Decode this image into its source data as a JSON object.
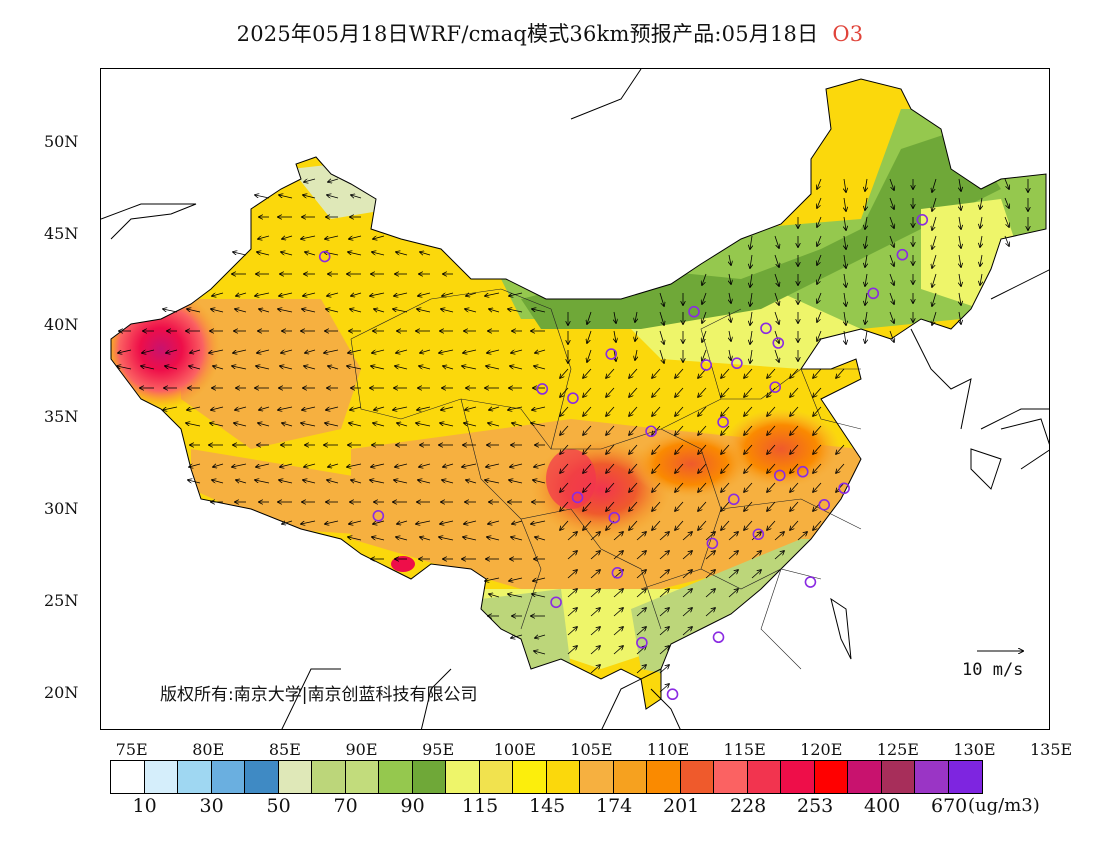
{
  "title": {
    "main": "2025年05月18日WRF/cmaq模式36km预报产品:05月18日",
    "pollutant": "O3",
    "pollutant_color": "#e0443a"
  },
  "map": {
    "lon_labels": [
      "75E",
      "80E",
      "85E",
      "90E",
      "95E",
      "100E",
      "105E",
      "110E",
      "115E",
      "120E",
      "125E",
      "130E",
      "135E"
    ],
    "lat_labels": [
      "50N",
      "45N",
      "40N",
      "35N",
      "30N",
      "25N",
      "20N"
    ],
    "lon_range": [
      73,
      135
    ],
    "lat_range": [
      18,
      54
    ],
    "copyright": "版权所有:南京大学|南京创蓝科技有限公司",
    "wind_ref_label": "10 m/s",
    "city_marker_color": "#8a2be2",
    "cities": [
      {
        "lon": 87.6,
        "lat": 43.8
      },
      {
        "lon": 91.1,
        "lat": 29.7
      },
      {
        "lon": 101.8,
        "lat": 36.6
      },
      {
        "lon": 103.8,
        "lat": 36.1
      },
      {
        "lon": 106.3,
        "lat": 38.5
      },
      {
        "lon": 104.1,
        "lat": 30.7
      },
      {
        "lon": 106.5,
        "lat": 29.6
      },
      {
        "lon": 106.7,
        "lat": 26.6
      },
      {
        "lon": 102.7,
        "lat": 25.0
      },
      {
        "lon": 108.3,
        "lat": 22.8
      },
      {
        "lon": 110.3,
        "lat": 20.0
      },
      {
        "lon": 113.3,
        "lat": 23.1
      },
      {
        "lon": 108.9,
        "lat": 34.3
      },
      {
        "lon": 111.7,
        "lat": 40.8
      },
      {
        "lon": 112.5,
        "lat": 37.9
      },
      {
        "lon": 114.5,
        "lat": 38.0
      },
      {
        "lon": 116.4,
        "lat": 39.9
      },
      {
        "lon": 117.2,
        "lat": 39.1
      },
      {
        "lon": 117.0,
        "lat": 36.7
      },
      {
        "lon": 113.6,
        "lat": 34.8
      },
      {
        "lon": 114.3,
        "lat": 30.6
      },
      {
        "lon": 112.9,
        "lat": 28.2
      },
      {
        "lon": 115.9,
        "lat": 28.7
      },
      {
        "lon": 117.3,
        "lat": 31.9
      },
      {
        "lon": 118.8,
        "lat": 32.1
      },
      {
        "lon": 120.2,
        "lat": 30.3
      },
      {
        "lon": 121.5,
        "lat": 31.2
      },
      {
        "lon": 119.3,
        "lat": 26.1
      },
      {
        "lon": 123.4,
        "lat": 41.8
      },
      {
        "lon": 125.3,
        "lat": 43.9
      },
      {
        "lon": 126.6,
        "lat": 45.8
      }
    ]
  },
  "legend": {
    "unit": "(ug/m3)",
    "labels": [
      "10",
      "30",
      "50",
      "70",
      "90",
      "115",
      "145",
      "174",
      "201",
      "228",
      "253",
      "400",
      "670"
    ],
    "colors": [
      "#ffffff",
      "#d5eefb",
      "#9fd7f2",
      "#6aafe0",
      "#3f8ac4",
      "#dfe8b8",
      "#bcd67a",
      "#c2dc7c",
      "#95c84e",
      "#6fa838",
      "#eef56a",
      "#f1e24e",
      "#fcee0c",
      "#fbd80c",
      "#f6b040",
      "#f6a11f",
      "#fa8a00",
      "#ef5a2c",
      "#fb6262",
      "#f2344f",
      "#ee0e49",
      "#ff0000",
      "#c8126e",
      "#a72e5a",
      "#9a35c5",
      "#7e25e0"
    ]
  }
}
